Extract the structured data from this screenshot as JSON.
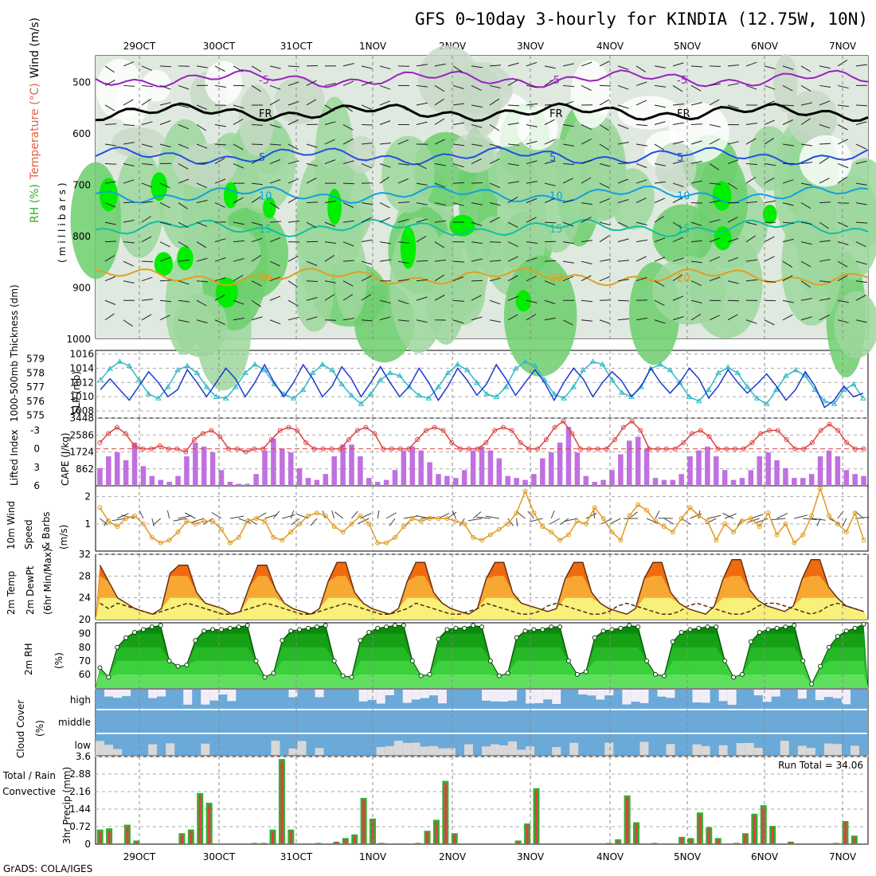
{
  "title": "GFS 0~10day 3-hourly for KINDIA (12.75W, 10N)",
  "credit": "GrADS: COLA/IGES",
  "date_labels": [
    "29OCT",
    "30OCT",
    "31OCT",
    "1NOV",
    "2NOV",
    "3NOV",
    "4NOV",
    "5NOV",
    "6NOV",
    "7NOV"
  ],
  "chart_data": [
    {
      "type": "heatmap",
      "panel": "upper-air",
      "ylabel_parts": [
        "Wind (m/s)",
        "Temperature (°C)",
        "RH (%)",
        "(millibars)"
      ],
      "ylabel_colors": [
        "#000000",
        "#e06040",
        "#30b030",
        "#000000"
      ],
      "y_ticks": [
        500,
        600,
        700,
        800,
        900,
        1000
      ],
      "ylim": [
        450,
        1000
      ],
      "contour_labels": [
        "-5",
        "FR",
        "5",
        "10",
        "15",
        "20"
      ],
      "isotherms": [
        {
          "label": "-5",
          "pressure": 495,
          "color": "#9a20c0"
        },
        {
          "label": "FR",
          "pressure": 560,
          "color": "#000000"
        },
        {
          "label": "5",
          "pressure": 645,
          "color": "#2050e0"
        },
        {
          "label": "10",
          "pressure": 720,
          "color": "#10a0e0"
        },
        {
          "label": "15",
          "pressure": 785,
          "color": "#10c0a0"
        },
        {
          "label": "20",
          "pressure": 880,
          "color": "#e0a020"
        }
      ]
    },
    {
      "type": "line",
      "panel": "thickness-slp",
      "ylabel_left": "1000-500mb Thickness (dm)",
      "ylabel_right": "SLP (mb)",
      "left_ticks": [
        579,
        578,
        577,
        576,
        575
      ],
      "left_colors": "#30b8c8",
      "right_ticks": [
        1016,
        1014,
        1012,
        1010,
        1008
      ],
      "series": [
        {
          "name": "SLP (mb)",
          "color": "#1a3ad0",
          "values": [
            1011,
            1012.5,
            1011,
            1009.5,
            1011.5,
            1013.5,
            1012,
            1010,
            1011,
            1013.8,
            1012,
            1010,
            1012,
            1014,
            1012.5,
            1010,
            1012,
            1014.5,
            1012,
            1010,
            1012,
            1014.5,
            1012.5,
            1010,
            1011.5,
            1014.2,
            1012.5,
            1010,
            1012,
            1014.2,
            1012,
            1010,
            1011.5,
            1014,
            1012,
            1009.5,
            1011.5,
            1014,
            1012.3,
            1010.2,
            1011.8,
            1014.5,
            1012.5,
            1010.2,
            1012,
            1013.8,
            1012,
            1009.5,
            1012,
            1014,
            1012.5,
            1010,
            1012,
            1013.5,
            1012.2,
            1010,
            1011.5,
            1014,
            1012,
            1010.5,
            1012,
            1014,
            1012.5,
            1009.8,
            1011.5,
            1013.8,
            1012,
            1010.5,
            1011.8,
            1013.2,
            1011.5,
            1009.5,
            1011,
            1013.5,
            1011.5,
            1008.5,
            1009.5,
            1011.5,
            1010,
            1010.5
          ]
        },
        {
          "name": "Thickness (dm)",
          "color": "#30b8c8",
          "values": [
            577.5,
            578.3,
            578.8,
            578.5,
            577.5,
            576.5,
            576.2,
            577,
            578.2,
            578.5,
            578,
            577,
            576.3,
            576.2,
            577,
            578,
            578.6,
            578.2,
            577.2,
            576.5,
            576.2,
            576.8,
            578,
            578.6,
            578.2,
            577.2,
            576.4,
            575.8,
            576.5,
            577.5,
            578,
            577.8,
            577,
            576.4,
            576.2,
            577,
            578,
            578.6,
            578.2,
            577.3,
            576.5,
            576.3,
            577,
            578.3,
            578.8,
            578.5,
            577.5,
            576.5,
            576.2,
            577,
            578.2,
            578.8,
            578.6,
            577.5,
            576.6,
            576.3,
            577,
            578.3,
            578.6,
            578.2,
            577.3,
            576.3,
            576,
            576.8,
            578,
            578.4,
            578,
            577,
            576.2,
            575.8,
            576.8,
            577.8,
            578.2,
            577.8,
            576.8,
            576,
            575.8,
            576.8,
            577.2,
            576.2
          ]
        }
      ]
    },
    {
      "type": "bar",
      "panel": "cape-li",
      "ylabel_left": "Lifted Index",
      "ylabel_right": "CAPE (J/kg)",
      "left_ticks": [
        "-3",
        "0",
        "3",
        "6"
      ],
      "right_ticks": [
        "3448",
        "2586",
        "1724",
        "862"
      ],
      "series": [
        {
          "name": "CAPE (J/kg)",
          "color": "#c070e0",
          "values": [
            900,
            1500,
            1700,
            1300,
            2200,
            1000,
            500,
            300,
            200,
            500,
            1500,
            2200,
            2000,
            1700,
            800,
            200,
            100,
            100,
            600,
            1800,
            2400,
            1900,
            1700,
            900,
            400,
            300,
            600,
            1500,
            2100,
            2100,
            1500,
            400,
            200,
            300,
            800,
            1800,
            2000,
            1800,
            1200,
            600,
            500,
            400,
            800,
            1800,
            2000,
            1800,
            1400,
            500,
            400,
            300,
            600,
            1400,
            1700,
            2200,
            3000,
            1700,
            500,
            200,
            300,
            800,
            1600,
            2300,
            2500,
            1900,
            400,
            300,
            300,
            600,
            1500,
            1800,
            2000,
            1500,
            800,
            300,
            400,
            800,
            1500,
            1700,
            1300,
            900,
            400,
            400,
            600,
            1500,
            1800,
            1500,
            800,
            600,
            500
          ]
        },
        {
          "name": "Lifted Index",
          "color": "#e04040",
          "values": [
            -1,
            -2.5,
            -3.5,
            -2.5,
            -0.5,
            0,
            0,
            -0.5,
            0,
            0,
            0.5,
            -1.5,
            -2.5,
            -3,
            -2,
            0,
            0,
            0.5,
            0,
            0,
            -1.5,
            -3,
            -3.5,
            -3,
            -1,
            0,
            0,
            0,
            0,
            -1.5,
            -3,
            -3.5,
            -2.5,
            0,
            0,
            0,
            0,
            -1.5,
            -3,
            -3.5,
            -3,
            -1,
            0,
            0,
            0,
            -1,
            -3,
            -3.5,
            -3,
            -1,
            0,
            0,
            -1.5,
            -3.5,
            -4.5,
            -2.5,
            0,
            0,
            0,
            0,
            -1.5,
            -3.5,
            -4.5,
            -3,
            0,
            0,
            0,
            0,
            -1,
            -2.5,
            -3,
            -2,
            0,
            0,
            0,
            0,
            -1,
            -2.5,
            -3,
            -3,
            -1.5,
            0,
            0,
            -1,
            -3,
            -4,
            -3,
            -1,
            0,
            0
          ]
        }
      ]
    },
    {
      "type": "line",
      "panel": "wind10m",
      "ylabel": "10m Wind Speed & Barbs (m/s)",
      "ylabel_parts": [
        "10m Wind",
        "Speed",
        "& Barbs",
        "(m/s)"
      ],
      "y_ticks": [
        "2",
        "1"
      ],
      "ylim": [
        0,
        2.4
      ],
      "series": [
        {
          "name": "10m Wind Speed",
          "color": "#e09a20",
          "values": [
            1.6,
            1.1,
            0.9,
            1.2,
            1.3,
            1.0,
            0.5,
            0.3,
            0.4,
            0.7,
            1.1,
            1.0,
            1.1,
            1.1,
            0.8,
            0.3,
            0.5,
            1.1,
            1.2,
            1.1,
            0.5,
            0.4,
            0.7,
            1.0,
            1.3,
            1.4,
            1.3,
            0.9,
            0.7,
            1.0,
            1.3,
            1.0,
            0.3,
            0.3,
            0.5,
            0.9,
            1.2,
            1.1,
            1.2,
            1.2,
            1.2,
            1.1,
            1.0,
            0.5,
            0.4,
            0.6,
            0.8,
            1.0,
            1.4,
            2.2,
            1.4,
            0.9,
            0.7,
            0.4,
            0.6,
            1.1,
            1.0,
            1.6,
            1.2,
            0.7,
            0.4,
            1.3,
            1.7,
            1.5,
            1.1,
            0.9,
            0.7,
            1.2,
            1.6,
            1.3,
            1.1,
            0.4,
            1.0,
            0.7,
            1.1,
            1.2,
            0.9,
            1.4,
            0.6,
            1.0,
            0.3,
            0.6,
            1.3,
            2.3,
            1.3,
            1.0,
            0.7,
            1.4,
            0.4
          ]
        }
      ]
    },
    {
      "type": "area",
      "panel": "temp2m",
      "ylabel_parts": [
        "2m Temp",
        "2m DewPt",
        "(6hr Min/Max)"
      ],
      "y_ticks": [
        "32",
        "28",
        "24",
        "20"
      ],
      "ylim": [
        20,
        32
      ],
      "series": [
        {
          "name": "2m Temp",
          "values": [
            30,
            27,
            24,
            23,
            22,
            21.5,
            21,
            22,
            28.5,
            30,
            30,
            25,
            23,
            22.5,
            22,
            21,
            21.5,
            26,
            30,
            30,
            25.5,
            23,
            22,
            21.5,
            21,
            22,
            27,
            30.5,
            30.5,
            25,
            23,
            22,
            21.5,
            21,
            22,
            27,
            30.5,
            30.5,
            25,
            23,
            22,
            21.5,
            21,
            22,
            27.5,
            30.5,
            30.5,
            25,
            23,
            22.5,
            22,
            21.5,
            22,
            27.5,
            30.5,
            30.5,
            25,
            23,
            22,
            21.5,
            21,
            22,
            27.5,
            30.5,
            30.5,
            25,
            23,
            22,
            21.5,
            21,
            22.5,
            27.5,
            31,
            31,
            25.5,
            23.5,
            22.5,
            22,
            21.5,
            22.5,
            27.5,
            31,
            31,
            26,
            24,
            22.5,
            22,
            21.5
          ]
        },
        {
          "name": "2m DewPt",
          "values": [
            23,
            22,
            23,
            22.5,
            22,
            21.5,
            21,
            21.5,
            22,
            22.5,
            23,
            22.5,
            22,
            21.5,
            21,
            21,
            21.5,
            22,
            22.5,
            23,
            22.5,
            22,
            21.5,
            21,
            21,
            21.5,
            22,
            22.5,
            23,
            22.5,
            22,
            21.5,
            21,
            21,
            21.5,
            22,
            23,
            22.5,
            22,
            21.5,
            21,
            21,
            21.5,
            22,
            23,
            22.5,
            22,
            21.5,
            21,
            21,
            21.5,
            22.5,
            23,
            22.5,
            22,
            21.5,
            21,
            21,
            21.5,
            22.5,
            23,
            22.5,
            22,
            21.5,
            21,
            21,
            21.5,
            22.5,
            23,
            22.5,
            22,
            21.5,
            21,
            21,
            21.5,
            22.5,
            23,
            23,
            22.5,
            22,
            21.5,
            21,
            21.5,
            22.5,
            23,
            22.5,
            22,
            21.5
          ]
        }
      ]
    },
    {
      "type": "area",
      "panel": "rh2m",
      "ylabel_parts": [
        "2m RH",
        "(%)"
      ],
      "y_ticks": [
        "90",
        "80",
        "70",
        "60"
      ],
      "ylim": [
        50,
        98
      ],
      "series": [
        {
          "name": "2m RH",
          "values": [
            65,
            58,
            80,
            87,
            91,
            93,
            95,
            96,
            70,
            66,
            67,
            85,
            92,
            93,
            93,
            94,
            95,
            96,
            70,
            58,
            61,
            85,
            92,
            93,
            94,
            95,
            96,
            70,
            59,
            58,
            85,
            91,
            94,
            95,
            96,
            96,
            70,
            59,
            60,
            86,
            93,
            94,
            94,
            96,
            95,
            70,
            59,
            61,
            87,
            92,
            93,
            93,
            95,
            95,
            70,
            60,
            62,
            87,
            92,
            93,
            94,
            96,
            95,
            70,
            60,
            59,
            84,
            91,
            93,
            94,
            95,
            95,
            70,
            58,
            60,
            84,
            91,
            93,
            94,
            95,
            96,
            70,
            53,
            66,
            80,
            88,
            92,
            94,
            97
          ]
        }
      ]
    },
    {
      "type": "bar",
      "panel": "cloud",
      "ylabel_parts": [
        "Cloud Cover",
        "(%)"
      ],
      "row_labels": [
        "high",
        "middle",
        "low"
      ],
      "colors": {
        "cloud": "#6aa9d8",
        "clear": "#f2eef8",
        "low": "#d8d8d8"
      }
    },
    {
      "type": "bar",
      "panel": "precip",
      "ylabel": "3hr Precip (mm)",
      "ylabel_left_parts": [
        "Total / Rain",
        "Convective"
      ],
      "y_ticks": [
        "3.6",
        "2.88",
        "2.16",
        "1.44",
        "0.72",
        "0"
      ],
      "ylim": [
        0,
        3.6
      ],
      "run_total_label": "Run Total = 34.06",
      "series": [
        {
          "name": "Total / Rain",
          "color": "#30b030",
          "values": [
            0.6,
            0.65,
            0,
            0.8,
            0.15,
            0,
            0,
            0,
            0,
            0.45,
            0.6,
            2.1,
            1.7,
            0,
            0,
            0,
            0,
            0.05,
            0.05,
            0.6,
            3.5,
            0.6,
            0,
            0,
            0.05,
            0,
            0.1,
            0.25,
            0.4,
            1.9,
            1.05,
            0.05,
            0,
            0,
            0,
            0.05,
            0.55,
            1,
            2.6,
            0.45,
            0,
            0,
            0,
            0,
            0,
            0,
            0.15,
            0.85,
            2.3,
            0,
            0,
            0,
            0,
            0,
            0,
            0,
            0.05,
            0.2,
            2,
            0.9,
            0,
            0.05,
            0,
            0,
            0.3,
            0.25,
            1.3,
            0.7,
            0.25,
            0,
            0.05,
            0.45,
            1.25,
            1.6,
            0.75,
            0,
            0.1,
            0,
            0,
            0,
            0,
            0.05,
            0.95,
            0.35,
            0
          ]
        },
        {
          "name": "Convective",
          "color": "#e04040",
          "values": [
            0.5,
            0.55,
            0,
            0.7,
            0.1,
            0,
            0,
            0,
            0,
            0.4,
            0.55,
            2,
            1.6,
            0,
            0,
            0,
            0,
            0.05,
            0.05,
            0.5,
            3.4,
            0.55,
            0,
            0,
            0.05,
            0,
            0.1,
            0.2,
            0.35,
            1.8,
            1,
            0.05,
            0,
            0,
            0,
            0.05,
            0.5,
            0.9,
            2.5,
            0.4,
            0,
            0,
            0,
            0,
            0,
            0,
            0.1,
            0.8,
            2.2,
            0,
            0,
            0,
            0,
            0,
            0,
            0,
            0.05,
            0.15,
            1.9,
            0.85,
            0,
            0.05,
            0,
            0,
            0.25,
            0.2,
            1.2,
            0.65,
            0.2,
            0,
            0.05,
            0.4,
            1.2,
            1.5,
            0.7,
            0,
            0.1,
            0,
            0,
            0,
            0,
            0.05,
            0.9,
            0.3,
            0
          ]
        }
      ]
    }
  ]
}
